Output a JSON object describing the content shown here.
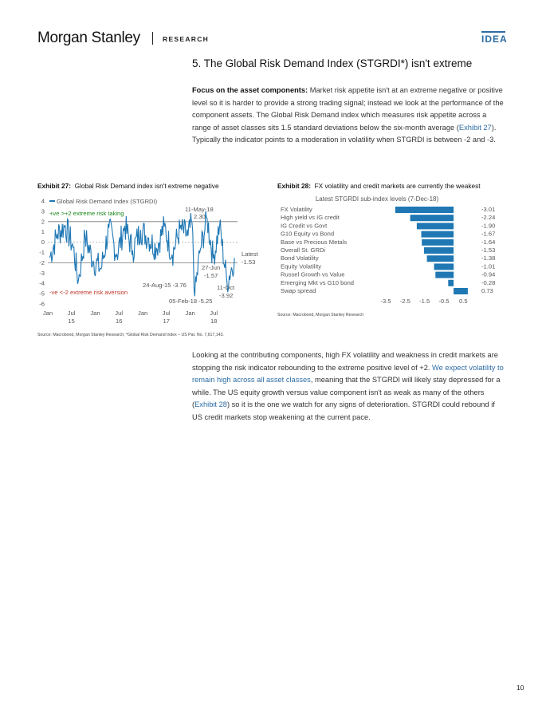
{
  "header": {
    "brand": "Morgan Stanley",
    "section": "RESEARCH",
    "tag": "IDEA"
  },
  "section_title": "5. The Global Risk Demand Index (STGRDI*) isn't extreme",
  "para1": {
    "bold": "Focus on the asset components:",
    "text1": " Market risk appetite isn't at an extreme negative or positive level so it is harder to provide a strong trading signal; instead we look at the performance of the component assets. The Global Risk Demand index which measures risk appetite across a range of asset classes sits 1.5 standard deviations below the six-month average (",
    "link": "Exhibit 27",
    "text2": "). Typically the indicator points to a moderation in volatility when STGRDI is between -2 and -3."
  },
  "exhibit27": {
    "label": "Exhibit 27:",
    "title": "Global Risk Demand index isn't extreme negative",
    "source": "Source: Macrobond, Morgan Stanley Research; *Global Risk Demand Index – US Pat. No. 7,617,143.",
    "legend": "Global Risk Demand Index (STGRDI)",
    "pos_note": "+ve >+2 extreme risk taking",
    "neg_note": "-ve <-2 extreme risk aversion",
    "ann_may_date": "11-May-18",
    "ann_may_val": "2.30",
    "ann_jun_date": "27-Jun",
    "ann_jun_val": "-1.57",
    "ann_aug": "24-Aug-15 -3.76",
    "ann_feb": "05-Feb-18 -5.25",
    "ann_oct_date": "11-Oct",
    "ann_oct_val": "-3.92",
    "ann_latest_label": "Latest",
    "ann_latest_val": "-1.53",
    "y_ticks": [
      "4",
      "3",
      "2",
      "1",
      "0",
      "-1",
      "-2",
      "-3",
      "-4",
      "-5",
      "-6"
    ],
    "x_top": [
      "Jan",
      "Jul",
      "Jan",
      "Jul",
      "Jan",
      "Jul",
      "Jan",
      "Jul"
    ],
    "x_year": [
      "15",
      "16",
      "17",
      "18"
    ]
  },
  "exhibit28": {
    "label": "Exhibit 28:",
    "title": "FX volatility and credit markets are currently the weakest",
    "source": "Source: Macrobond, Morgan Stanley Research",
    "chart_title": "Latest STGRDI sub-index levels (7-Dec-18)"
  },
  "chart_data": [
    {
      "type": "line",
      "title": "",
      "xlabel": "",
      "ylabel": "",
      "ylim": [
        -6,
        4
      ],
      "x_range": [
        "Jan 2015",
        "Dec 2018"
      ],
      "series": [
        {
          "name": "Global Risk Demand Index (STGRDI)",
          "x": [
            "2015-01",
            "2015-03",
            "2015-05",
            "2015-07",
            "2015-08-24",
            "2015-10",
            "2015-12",
            "2016-02",
            "2016-04",
            "2016-06",
            "2016-08",
            "2016-10",
            "2016-12",
            "2017-02",
            "2017-04",
            "2017-06",
            "2017-08",
            "2017-10",
            "2017-12",
            "2018-01",
            "2018-02-05",
            "2018-03",
            "2018-05-11",
            "2018-06-27",
            "2018-08",
            "2018-10-11",
            "2018-12-07"
          ],
          "values": [
            -1.5,
            0.8,
            1.6,
            -0.5,
            -3.76,
            0.5,
            -1.8,
            -2.6,
            1.4,
            -1.2,
            1.6,
            -0.8,
            1.2,
            0.4,
            -0.6,
            1.5,
            -1.2,
            1.3,
            0.6,
            1.9,
            -5.25,
            -1.0,
            2.3,
            -1.57,
            1.6,
            -3.92,
            -1.53
          ]
        }
      ],
      "threshold_lines": [
        2,
        -2
      ],
      "annotations": [
        "11-May-18 2.30",
        "27-Jun -1.57",
        "24-Aug-15 -3.76",
        "05-Feb-18 -5.25",
        "11-Oct -3.92",
        "Latest -1.53"
      ]
    },
    {
      "type": "bar",
      "orientation": "horizontal",
      "title": "Latest STGRDI sub-index levels (7-Dec-18)",
      "categories": [
        "FX Volatility",
        "High yield vs IG credit",
        "IG Credit vs Govt",
        "G10 Equity vs Bond",
        "Base vs Precious Metals",
        "Overall St. GRDi",
        "Bond Volatility",
        "Equity Volatility",
        "Russel Growth vs Value",
        "Emerging Mkt vs G10 bond",
        "Swap spread"
      ],
      "values": [
        -3.01,
        -2.24,
        -1.9,
        -1.67,
        -1.64,
        -1.53,
        -1.38,
        -1.01,
        -0.94,
        -0.28,
        0.73
      ],
      "value_labels": [
        "-3.01",
        "-2.24",
        "-1.90",
        "-1.67",
        "-1.64",
        "-1.53",
        "-1.38",
        "-1.01",
        "-0.94",
        "-0.28",
        "0.73"
      ],
      "x_ticks": [
        "-3.5",
        "-2.5",
        "-1.5",
        "-0.5",
        "0.5"
      ],
      "xlim": [
        -3.5,
        0.9
      ],
      "color": "#1f77b4"
    }
  ],
  "para2": {
    "text1": "Looking at the contributing components, high FX volatility and weakness in credit markets are stopping the risk indicator rebounding to the extreme positive level of +2. ",
    "link1": "We expect volatility to remain high across all asset classes",
    "text2": ", meaning that the STGRDI will likely stay depressed for a while. The US equity growth versus value component isn't as weak as many of the others (",
    "link2": "Exhibit 28",
    "text3": ") so it is the one we watch for any signs of deterioration. STGRDI could rebound if US credit markets stop weakening at the current pace."
  },
  "page_number": "10"
}
